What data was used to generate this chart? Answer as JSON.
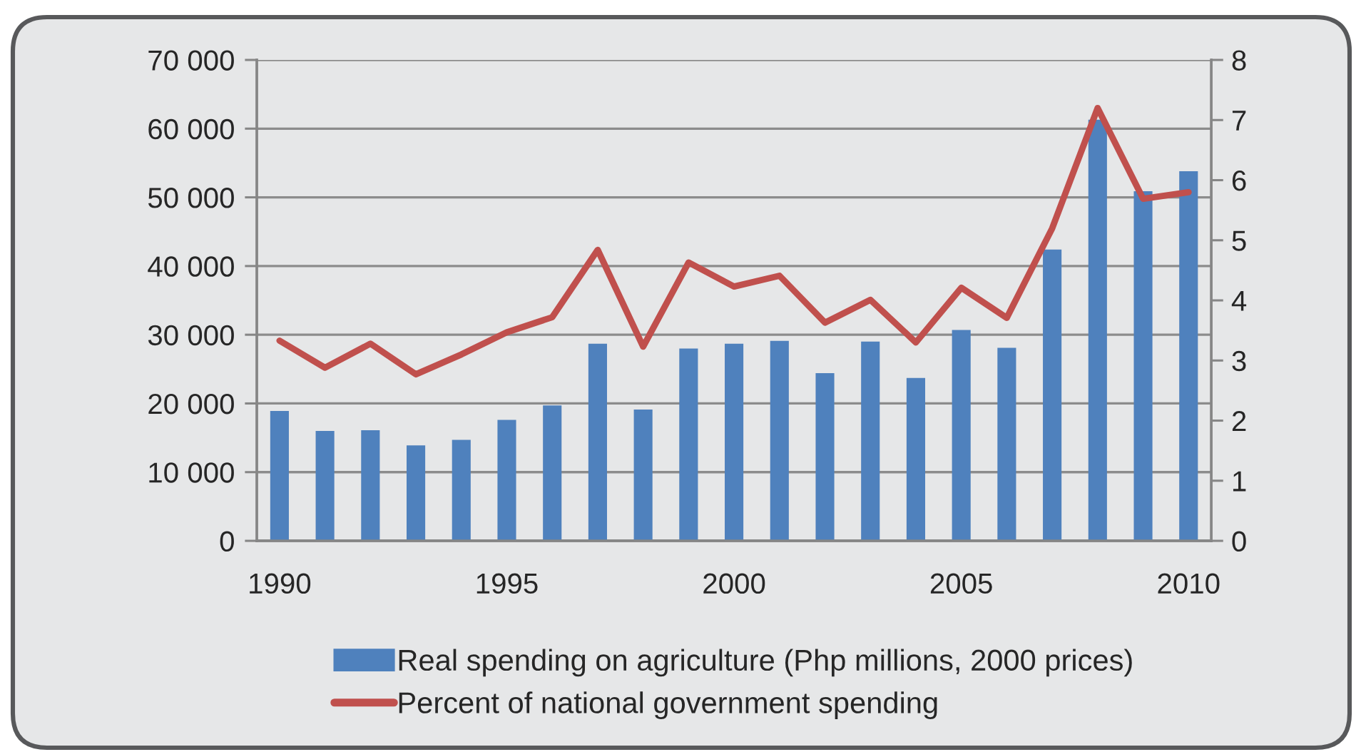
{
  "chart_data": {
    "type": "bar",
    "categories": [
      "1990",
      null,
      null,
      null,
      null,
      "1995",
      null,
      null,
      null,
      null,
      "2000",
      null,
      null,
      null,
      null,
      "2005",
      null,
      null,
      null,
      null,
      "2010"
    ],
    "series": [
      {
        "name": "Real spending on agriculture (Php millions, 2000 prices)",
        "color": "#4f81bd",
        "values": [
          18900,
          16000,
          16100,
          13900,
          14700,
          17600,
          19700,
          28700,
          19100,
          28000,
          28700,
          29100,
          24400,
          29000,
          23700,
          30700,
          28100,
          42400,
          61300,
          50900,
          53800
        ]
      },
      {
        "name": "Percent of national government spending",
        "type": "line",
        "axis": "y2",
        "color": "#c0504d",
        "values": [
          3.33,
          2.88,
          3.28,
          2.77,
          3.1,
          3.47,
          3.72,
          4.84,
          3.23,
          4.63,
          4.23,
          4.41,
          3.63,
          4.01,
          3.3,
          4.21,
          3.71,
          5.2,
          7.2,
          5.69,
          5.8
        ]
      }
    ],
    "ylim": [
      0,
      70000
    ],
    "yticks": [
      0,
      {
        "value": 10000,
        "label": "10 000"
      },
      {
        "value": 20000,
        "label": "20 000"
      },
      {
        "value": 30000,
        "label": "30 000"
      },
      {
        "value": 40000,
        "label": "40 000"
      },
      {
        "value": 50000,
        "label": "50 000"
      },
      {
        "value": 60000,
        "label": "60 000"
      },
      {
        "value": 70000,
        "label": "70 000"
      }
    ],
    "y2lim": [
      0,
      8
    ],
    "y2ticks": [
      0,
      1,
      2,
      3,
      4,
      5,
      6,
      7,
      8
    ],
    "grid": "y",
    "legend": "bottom"
  }
}
